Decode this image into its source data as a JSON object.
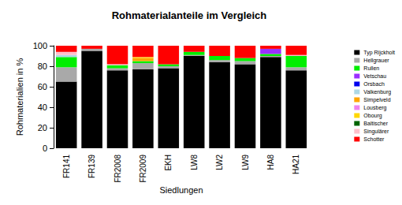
{
  "chart_data": {
    "type": "bar",
    "stacked": true,
    "title": "Rohmaterialanteile im Vergleich",
    "x_label": "Siedlungen",
    "y_label": "Rohmaterialien in %",
    "categories": [
      "FR141",
      "FR139",
      "FR2008",
      "FR2009",
      "EKH",
      "LW8",
      "LW2",
      "LW9",
      "HA8",
      "HA21"
    ],
    "ylim": [
      0,
      100
    ],
    "yticks": [
      0,
      20,
      40,
      60,
      80,
      100
    ],
    "grid": false,
    "legend": "right",
    "series": [
      {
        "name": "Typ Rijckholt",
        "color": "#000000",
        "values": [
          65,
          95,
          76,
          77,
          78,
          90,
          84,
          82,
          89,
          76
        ]
      },
      {
        "name": "Hellgrauer",
        "color": "#a9a9a9",
        "values": [
          14,
          2,
          2,
          6,
          2,
          1,
          2,
          3,
          1,
          3
        ]
      },
      {
        "name": "Rullen",
        "color": "#00ee00",
        "values": [
          10,
          0,
          3,
          2,
          2,
          3,
          4,
          3,
          2,
          11
        ]
      },
      {
        "name": "Vetschau",
        "color": "#9b30ff",
        "values": [
          0,
          0,
          0,
          0,
          0,
          0,
          0,
          0,
          5,
          0
        ]
      },
      {
        "name": "Orsbach",
        "color": "#0000ee",
        "values": [
          0,
          0,
          0,
          0,
          0,
          0,
          0,
          0,
          0,
          0
        ]
      },
      {
        "name": "Valkenburg",
        "color": "#add8e6",
        "values": [
          2,
          0,
          0,
          0,
          0,
          0,
          0,
          0,
          0,
          0
        ]
      },
      {
        "name": "Simpelveld",
        "color": "#ffa500",
        "values": [
          0,
          0,
          0,
          3,
          0,
          0,
          0,
          0,
          0,
          0
        ]
      },
      {
        "name": "Lousberg",
        "color": "#ee82ee",
        "values": [
          0,
          0,
          0,
          0,
          0,
          0,
          0,
          0,
          0,
          0
        ]
      },
      {
        "name": "Obourg",
        "color": "#ffd700",
        "values": [
          0,
          0,
          0,
          1,
          0,
          0,
          0,
          0,
          0,
          0
        ]
      },
      {
        "name": "Baltischer",
        "color": "#006400",
        "values": [
          0,
          0,
          0,
          0,
          0,
          0,
          0,
          0,
          0,
          0
        ]
      },
      {
        "name": "Singulärer",
        "color": "#ffc0cb",
        "values": [
          3,
          0,
          1,
          0,
          0,
          0,
          0,
          0,
          0,
          1
        ]
      },
      {
        "name": "Schotter",
        "color": "#ff0000",
        "values": [
          6,
          3,
          18,
          11,
          18,
          6,
          10,
          12,
          3,
          9
        ]
      }
    ]
  }
}
